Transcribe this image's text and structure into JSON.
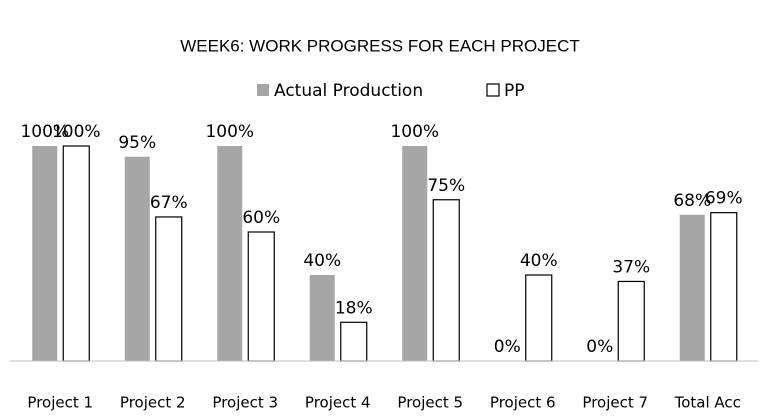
{
  "chart_data": {
    "type": "bar",
    "title": "WEEK6: WORK PROGRESS FOR EACH PROJECT",
    "categories": [
      "Project 1",
      "Project 2",
      "Project 3",
      "Project 4",
      "Project 5",
      "Project 6",
      "Project 7",
      "Total Acc"
    ],
    "series": [
      {
        "name": "Actual Production",
        "color": "#a6a6a6",
        "values": [
          100,
          95,
          100,
          40,
          100,
          0,
          0,
          68
        ],
        "value_labels": [
          "100%",
          "95%",
          "100%",
          "40%",
          "100%",
          "0%",
          "0%",
          "68%"
        ]
      },
      {
        "name": "PP",
        "color": "#ffffff",
        "values": [
          100,
          67,
          60,
          18,
          75,
          40,
          37,
          69
        ],
        "value_labels": [
          "100%",
          "67%",
          "60%",
          "18%",
          "75%",
          "40%",
          "37%",
          "69%"
        ]
      }
    ],
    "ylim": [
      0,
      100
    ],
    "legend": "top"
  }
}
